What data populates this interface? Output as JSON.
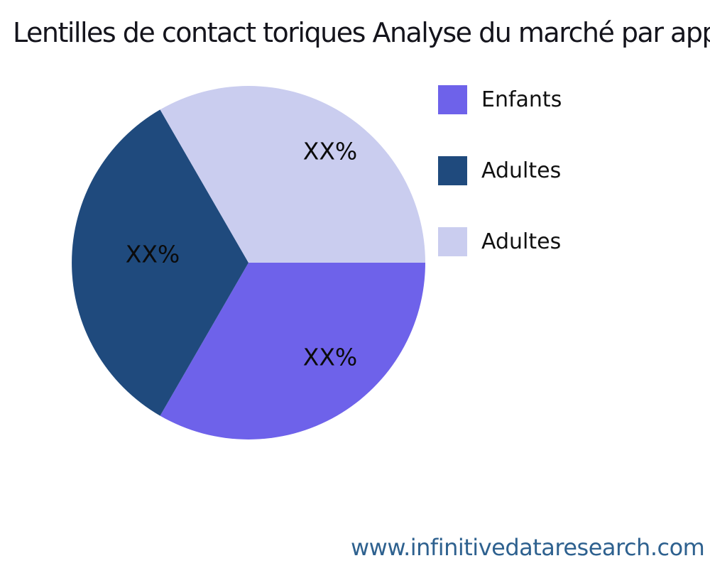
{
  "chart_data": {
    "type": "pie",
    "title": "Lentilles de contact toriques Analyse du marché par app",
    "title_truncated_at_right_edge": true,
    "start_angle_deg": 0,
    "direction": "clockwise",
    "legend_position": "right",
    "values_are_placeholders": true,
    "slices": [
      {
        "label": "Enfants",
        "display_value": "XX%",
        "percent_of_circle": 33.333,
        "color": "#6E62EA"
      },
      {
        "label": "Adultes",
        "display_value": "XX%",
        "percent_of_circle": 33.333,
        "color": "#1F4A7D"
      },
      {
        "label": "Adultes",
        "display_value": "XX%",
        "percent_of_circle": 33.334,
        "color": "#CACDEF"
      }
    ]
  },
  "legend": {
    "items": [
      {
        "label": "Enfants",
        "color": "#6E62EA"
      },
      {
        "label": "Adultes",
        "color": "#1F4A7D"
      },
      {
        "label": "Adultes",
        "color": "#CACDEF"
      }
    ]
  },
  "footer": {
    "website": "www.infinitivedataresearch.com",
    "color": "#2E618F"
  }
}
